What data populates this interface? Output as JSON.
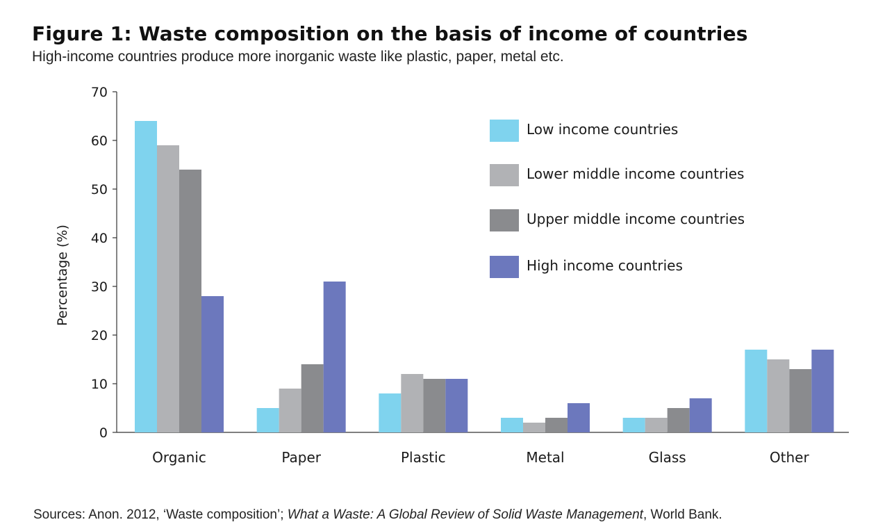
{
  "title": "Figure 1: Waste composition on the basis of income of countries",
  "subtitle": "High-income countries produce more inorganic waste like plastic, paper, metal etc.",
  "source": {
    "prefix": "Sources: Anon. 2012, ‘Waste composition’; ",
    "italic": "What a Waste: A Global Review of Solid Waste Management",
    "suffix": ", World Bank."
  },
  "colors": {
    "low": "#7fd3ee",
    "lower_middle": "#b1b2b5",
    "upper_middle": "#8a8b8e",
    "high": "#6c78bd"
  },
  "chart_data": {
    "type": "bar",
    "title": "Figure 1: Waste composition on the basis of income of countries",
    "xlabel": "",
    "ylabel": "Percentage (%)",
    "ylim": [
      0,
      70
    ],
    "yticks": [
      0,
      10,
      20,
      30,
      40,
      50,
      60,
      70
    ],
    "grid": false,
    "legend_position": "top-right",
    "categories": [
      "Organic",
      "Paper",
      "Plastic",
      "Metal",
      "Glass",
      "Other"
    ],
    "series": [
      {
        "name": "Low income countries",
        "color_key": "low",
        "values": [
          64,
          5,
          8,
          3,
          3,
          17
        ]
      },
      {
        "name": "Lower middle income countries",
        "color_key": "lower_middle",
        "values": [
          59,
          9,
          12,
          2,
          3,
          15
        ]
      },
      {
        "name": "Upper middle income countries",
        "color_key": "upper_middle",
        "values": [
          54,
          14,
          11,
          3,
          5,
          13
        ]
      },
      {
        "name": "High income countries",
        "color_key": "high",
        "values": [
          28,
          31,
          11,
          6,
          7,
          17
        ]
      }
    ]
  }
}
